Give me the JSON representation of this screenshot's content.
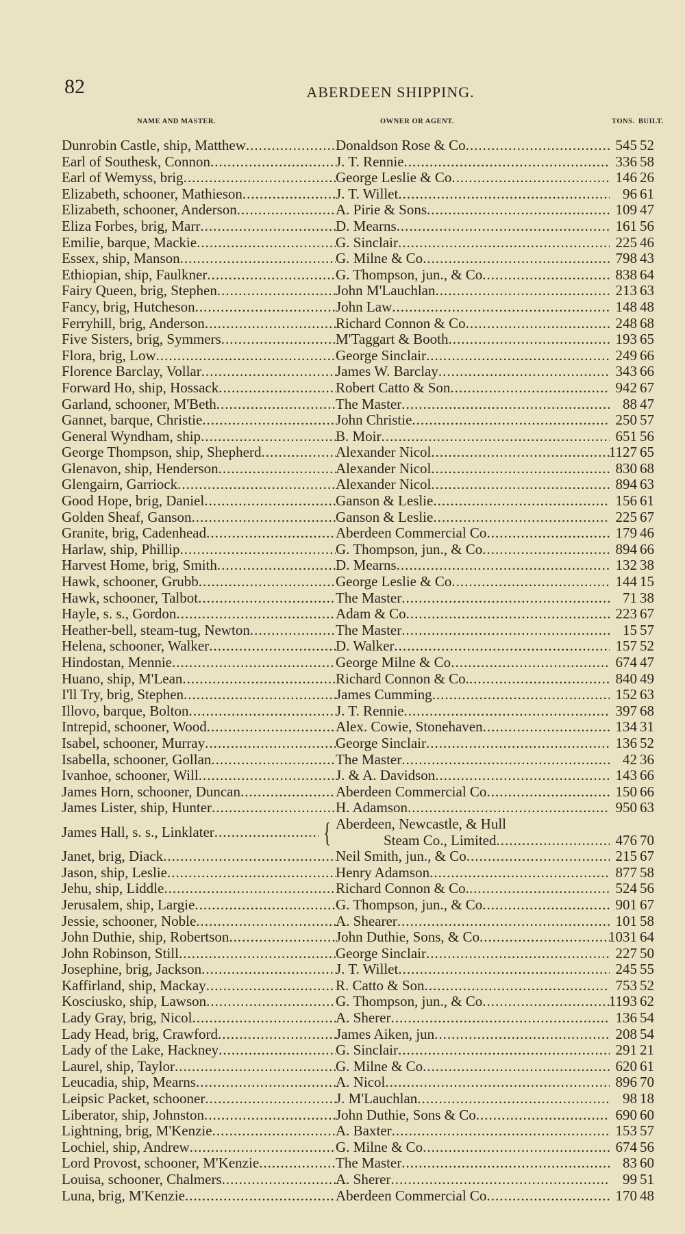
{
  "page": {
    "number": "82",
    "title": "ABERDEEN SHIPPING."
  },
  "columns": {
    "name": "NAME AND MASTER.",
    "owner": "OWNER OR AGENT.",
    "tons": "TONS.",
    "built": "BUILT."
  },
  "rows": [
    {
      "name": "Dunrobin Castle, ship, Matthew",
      "owner": "Donaldson Rose & Co",
      "tons": "545",
      "built": "52"
    },
    {
      "name": "Earl of Southesk, Connon",
      "owner": "J. T. Rennie",
      "tons": "336",
      "built": "58"
    },
    {
      "name": "Earl of Wemyss, brig",
      "owner": "George Leslie & Co",
      "tons": "146",
      "built": "26"
    },
    {
      "name": "Elizabeth, schooner, Mathieson",
      "owner": "J. T. Willet",
      "tons": "96",
      "built": "61"
    },
    {
      "name": "Elizabeth, schooner, Anderson",
      "owner": "A. Pirie & Sons",
      "tons": "109",
      "built": "47"
    },
    {
      "name": "Eliza Forbes, brig, Marr",
      "owner": "D. Mearns",
      "tons": "161",
      "built": "56"
    },
    {
      "name": "Emilie, barque, Mackie",
      "owner": "G. Sinclair",
      "tons": "225",
      "built": "46"
    },
    {
      "name": "Essex, ship, Manson",
      "owner": "G. Milne & Co",
      "tons": "798",
      "built": "43"
    },
    {
      "name": "Ethiopian, ship, Faulkner",
      "owner": "G. Thompson, jun., & Co",
      "tons": "838",
      "built": "64"
    },
    {
      "name": "Fairy Queen, brig, Stephen",
      "owner": "John M'Lauchlan",
      "tons": "213",
      "built": "63"
    },
    {
      "name": "Fancy, brig, Hutcheson",
      "owner": "John Law",
      "tons": "148",
      "built": "48"
    },
    {
      "name": "Ferryhill, brig, Anderson",
      "owner": "Richard Connon & Co",
      "tons": "248",
      "built": "68"
    },
    {
      "name": "Five Sisters, brig, Symmers",
      "owner": "M'Taggart & Booth",
      "tons": "193",
      "built": "65"
    },
    {
      "name": "Flora, brig, Low",
      "owner": "George Sinclair",
      "tons": "249",
      "built": "66"
    },
    {
      "name": "Florence Barclay, Vollar",
      "owner": "James W. Barclay",
      "tons": "343",
      "built": "66"
    },
    {
      "name": "Forward Ho, ship, Hossack",
      "owner": "Robert Catto & Son",
      "tons": "942",
      "built": "67"
    },
    {
      "name": "Garland, schooner, M'Beth",
      "owner": "The Master",
      "tons": "88",
      "built": "47"
    },
    {
      "name": "Gannet, barque, Christie",
      "owner": "John Christie",
      "tons": "250",
      "built": "57"
    },
    {
      "name": "General Wyndham, ship",
      "owner": "B. Moir",
      "tons": "651",
      "built": "56"
    },
    {
      "name": "George Thompson, ship, Shepherd",
      "owner": "Alexander Nicol",
      "tons": "1127",
      "built": "65"
    },
    {
      "name": "Glenavon, ship, Henderson",
      "owner": "Alexander Nicol",
      "tons": "830",
      "built": "68"
    },
    {
      "name": "Glengairn, Garriock",
      "owner": "Alexander Nicol",
      "tons": "894",
      "built": "63"
    },
    {
      "name": "Good Hope, brig, Daniel",
      "owner": "Ganson & Leslie",
      "tons": "156",
      "built": "61"
    },
    {
      "name": "Golden Sheaf, Ganson",
      "owner": "Ganson & Leslie",
      "tons": "225",
      "built": "67"
    },
    {
      "name": "Granite, brig, Cadenhead",
      "owner": "Aberdeen Commercial Co",
      "tons": "179",
      "built": "46"
    },
    {
      "name": "Harlaw, ship, Phillip",
      "owner": "G. Thompson, jun., & Co",
      "tons": "894",
      "built": "66"
    },
    {
      "name": "Harvest Home, brig, Smith",
      "owner": "D. Mearns",
      "tons": "132",
      "built": "38"
    },
    {
      "name": "Hawk, schooner, Grubb",
      "owner": "George Leslie & Co",
      "tons": "144",
      "built": "15"
    },
    {
      "name": "Hawk, schooner, Talbot",
      "owner": "The Master",
      "tons": "71",
      "built": "38"
    },
    {
      "name": "Hayle, s. s., Gordon",
      "owner": "Adam & Co",
      "tons": "223",
      "built": "67"
    },
    {
      "name": "Heather-bell, steam-tug, Newton",
      "owner": "The Master",
      "tons": "15",
      "built": "57"
    },
    {
      "name": "Helena, schooner, Walker",
      "owner": "D. Walker",
      "tons": "157",
      "built": "52"
    },
    {
      "name": "Hindostan, Mennie",
      "owner": "George Milne & Co",
      "tons": "674",
      "built": "47"
    },
    {
      "name": "Huano, ship, M'Lean",
      "owner": "Richard Connon & Co.",
      "tons": "840",
      "built": "49"
    },
    {
      "name": "I'll Try, brig, Stephen",
      "owner": "James Cumming",
      "tons": "152",
      "built": "63"
    },
    {
      "name": "Illovo, barque, Bolton",
      "owner": "J. T. Rennie",
      "tons": "397",
      "built": "68"
    },
    {
      "name": "Intrepid, schooner, Wood",
      "owner": "Alex. Cowie, Stonehaven",
      "tons": "134",
      "built": "31"
    },
    {
      "name": "Isabel, schooner, Murray",
      "owner": "George Sinclair",
      "tons": "136",
      "built": "52"
    },
    {
      "name": "Isabella, schooner, Gollan",
      "owner": "The Master",
      "tons": "42",
      "built": "36"
    },
    {
      "name": "Ivanhoe, schooner, Will",
      "owner": "J. & A. Davidson",
      "tons": "143",
      "built": "66"
    },
    {
      "name": "James Horn, schooner, Duncan",
      "owner": "Aberdeen Commercial Co",
      "tons": "150",
      "built": "66"
    },
    {
      "name": "James Lister, ship, Hunter",
      "owner": "H. Adamson",
      "tons": "950",
      "built": "63"
    },
    {
      "name": "James Hall, s. s., Linklater",
      "owner_lines": [
        "Aberdeen, Newcastle, & Hull",
        "Steam Co., Limited"
      ],
      "tons": "476",
      "built": "70"
    },
    {
      "name": "Janet, brig, Diack",
      "owner": "Neil Smith, jun., & Co",
      "tons": "215",
      "built": "67"
    },
    {
      "name": "Jason, ship, Leslie",
      "owner": "Henry Adamson",
      "tons": "877",
      "built": "58"
    },
    {
      "name": "Jehu, ship, Liddle",
      "owner": "Richard Connon & Co.",
      "tons": "524",
      "built": "56"
    },
    {
      "name": "Jerusalem, ship, Largie",
      "owner": "G. Thompson, jun., & Co",
      "tons": "901",
      "built": "67"
    },
    {
      "name": "Jessie, schooner, Noble",
      "owner": "A. Shearer",
      "tons": "101",
      "built": "58"
    },
    {
      "name": "John Duthie, ship, Robertson",
      "owner": "John Duthie, Sons, & Co",
      "tons": "1031",
      "built": "64"
    },
    {
      "name": "John Robinson, Still",
      "owner": "George Sinclair",
      "tons": "227",
      "built": "50"
    },
    {
      "name": "Josephine, brig, Jackson",
      "owner": "J. T. Willet",
      "tons": "245",
      "built": "55"
    },
    {
      "name": "Kaffirland, ship, Mackay",
      "owner": "R. Catto & Son",
      "tons": "753",
      "built": "52"
    },
    {
      "name": "Kosciusko, ship, Lawson",
      "owner": "G. Thompson, jun., & Co",
      "tons": "1193",
      "built": "62"
    },
    {
      "name": "Lady Gray, brig, Nicol",
      "owner": "A. Sherer",
      "tons": "136",
      "built": "54"
    },
    {
      "name": "Lady Head, brig, Crawford",
      "owner": "James Aiken, jun",
      "tons": "208",
      "built": "54"
    },
    {
      "name": "Lady of the Lake, Hackney",
      "owner": "G. Sinclair",
      "tons": "291",
      "built": "21"
    },
    {
      "name": "Laurel, ship, Taylor",
      "owner": "G. Milne & Co",
      "tons": "620",
      "built": "61"
    },
    {
      "name": "Leucadia, ship, Mearns",
      "owner": "A. Nicol",
      "tons": "896",
      "built": "70"
    },
    {
      "name": "Leipsic Packet, schooner",
      "owner": "J. M'Lauchlan",
      "tons": "98",
      "built": "18"
    },
    {
      "name": "Liberator, ship, Johnston",
      "owner": "John Duthie, Sons & Co",
      "tons": "690",
      "built": "60"
    },
    {
      "name": "Lightning, brig, M'Kenzie",
      "owner": "A. Baxter",
      "tons": "153",
      "built": "57"
    },
    {
      "name": "Lochiel, ship, Andrew",
      "owner": "G. Milne & Co",
      "tons": "674",
      "built": "56"
    },
    {
      "name": "Lord Provost, schooner, M'Kenzie",
      "owner": "The Master",
      "tons": "83",
      "built": "60"
    },
    {
      "name": "Louisa, schooner, Chalmers",
      "owner": "A. Sherer",
      "tons": "99",
      "built": "51"
    },
    {
      "name": "Luna, brig, M'Kenzie",
      "owner": "Aberdeen Commercial Co",
      "tons": "170",
      "built": "48"
    }
  ]
}
